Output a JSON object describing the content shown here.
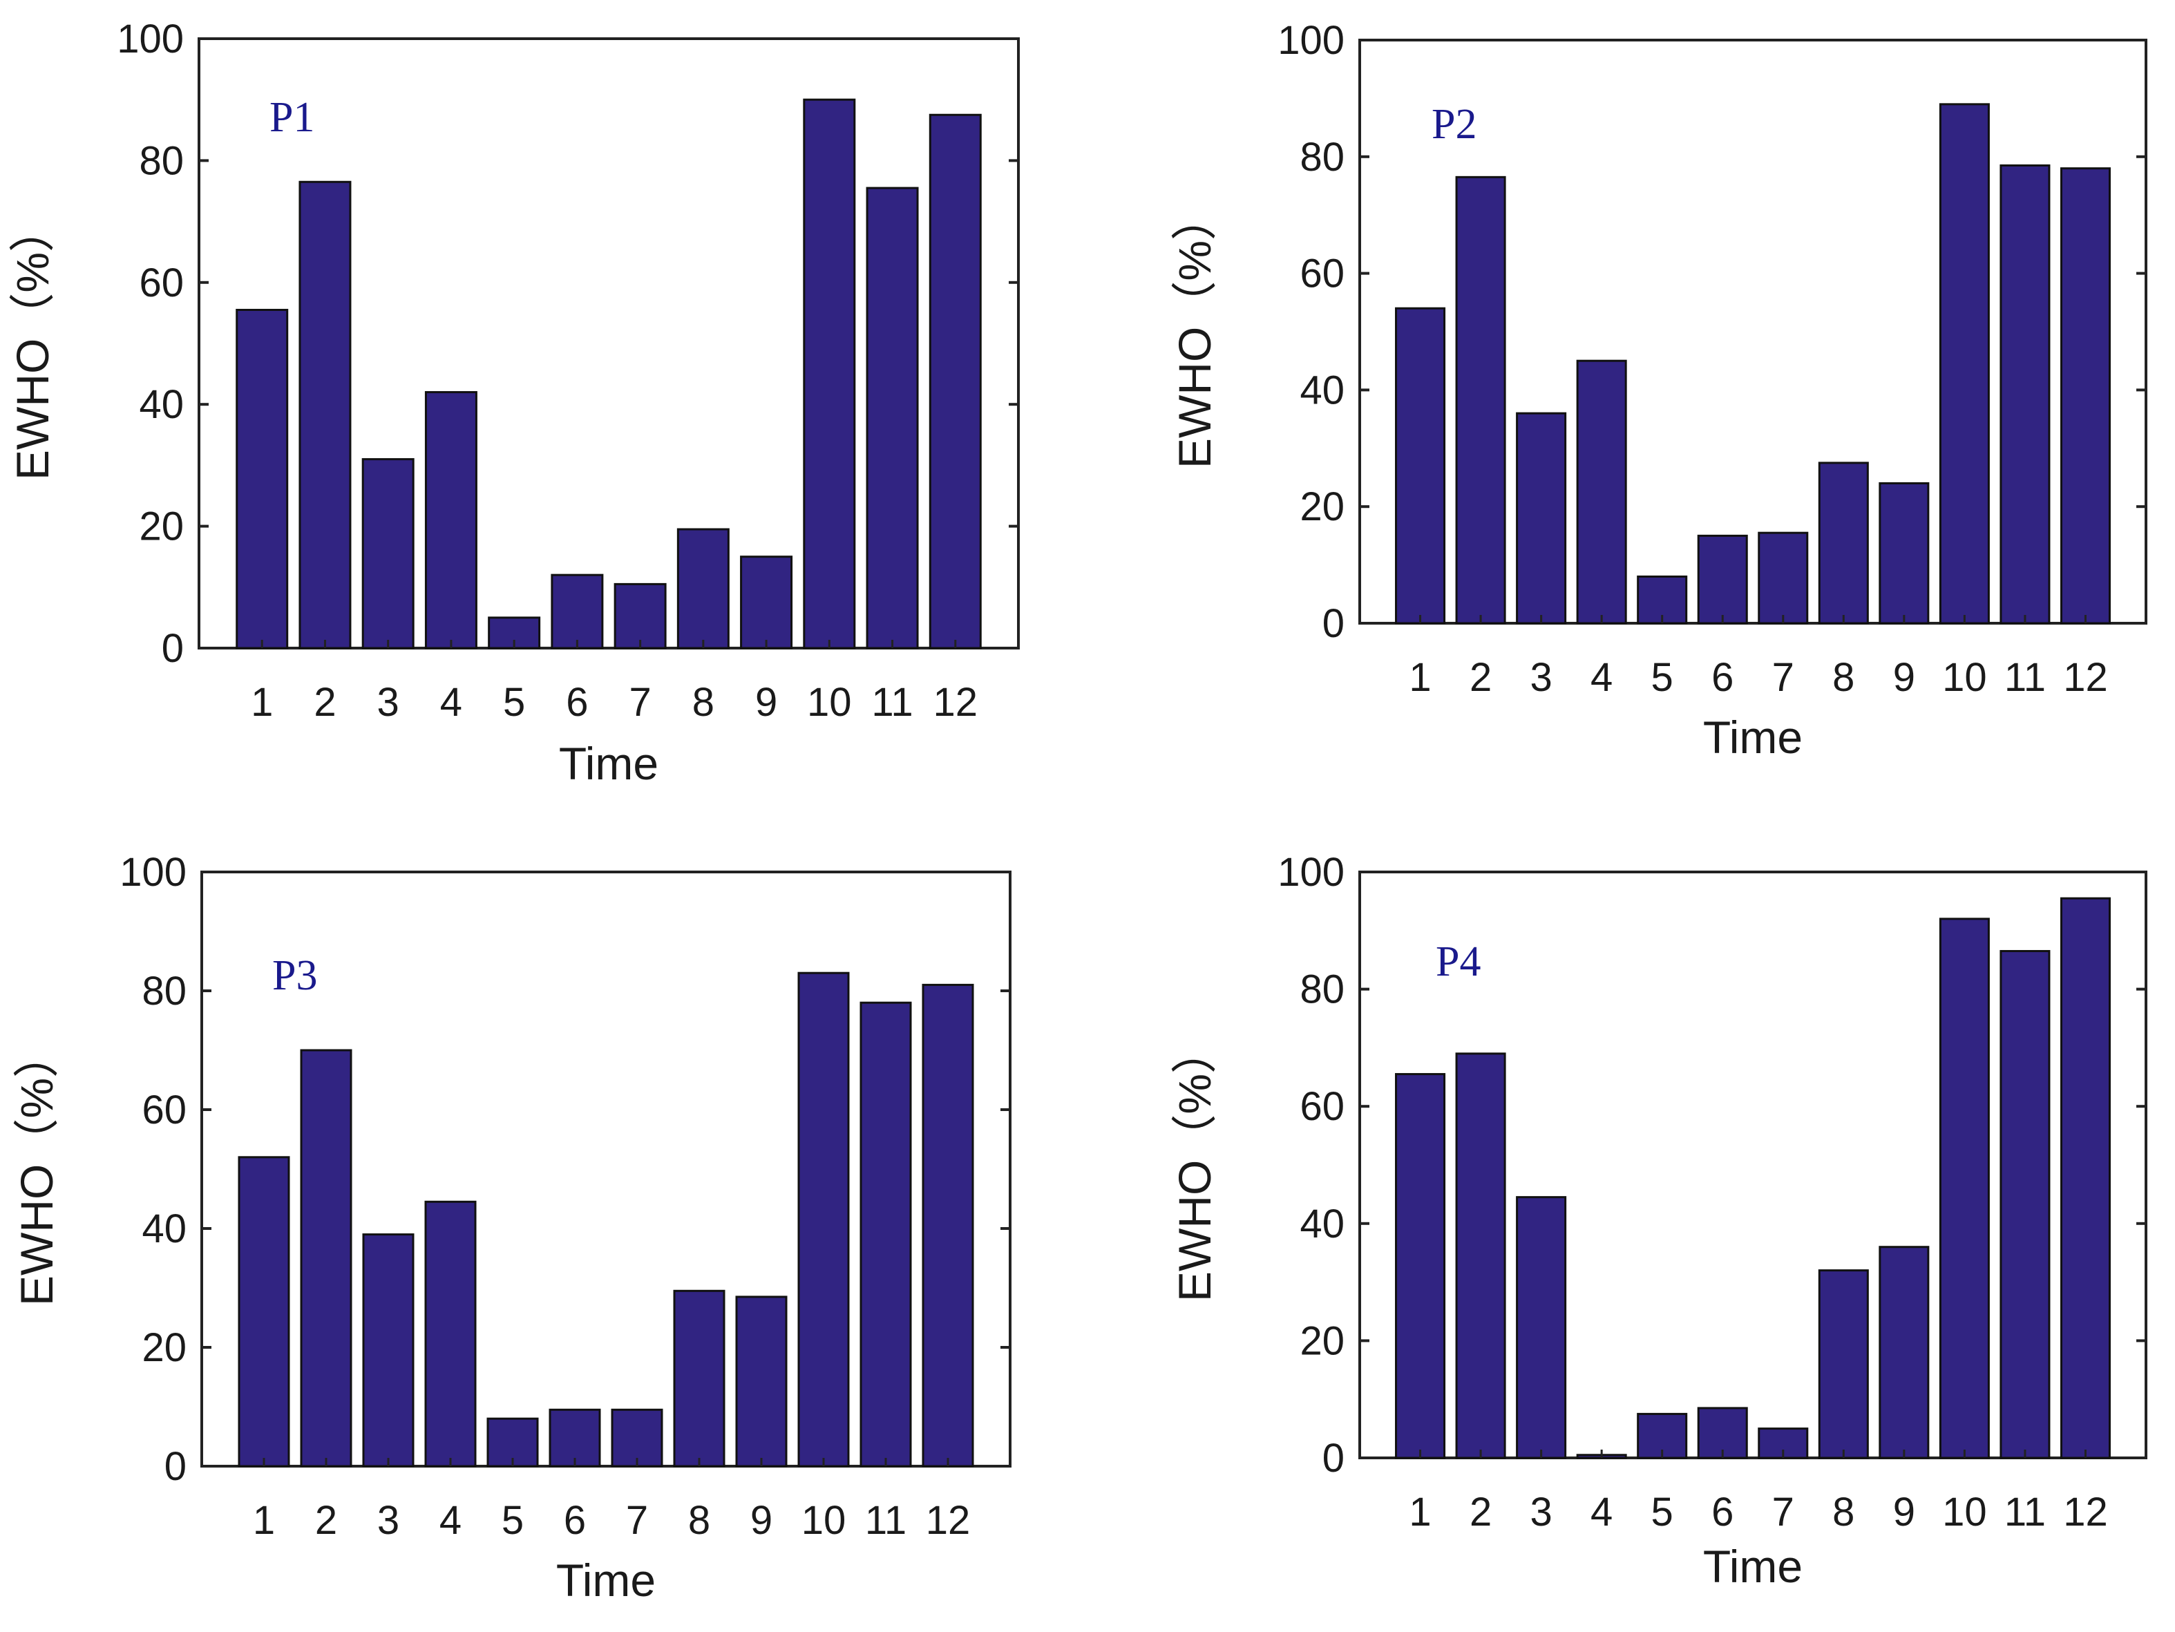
{
  "chart_data": [
    {
      "type": "bar",
      "panel_label": "P1",
      "xlabel": "Time",
      "ylabel": "EWHO（%）",
      "categories": [
        "1",
        "2",
        "3",
        "4",
        "5",
        "6",
        "7",
        "8",
        "9",
        "10",
        "11",
        "12"
      ],
      "values": [
        55.5,
        76.5,
        31.0,
        42.0,
        5.0,
        12.0,
        10.5,
        19.5,
        15.0,
        90.0,
        75.5,
        87.5
      ],
      "ylim": [
        0,
        100
      ],
      "yticks": [
        "0",
        "20",
        "40",
        "60",
        "80",
        "100"
      ],
      "bar_color": "#312482"
    },
    {
      "type": "bar",
      "panel_label": "P2",
      "xlabel": "Time",
      "ylabel": "EWHO（%）",
      "categories": [
        "1",
        "2",
        "3",
        "4",
        "5",
        "6",
        "7",
        "8",
        "9",
        "10",
        "11",
        "12"
      ],
      "values": [
        54.0,
        76.5,
        36.0,
        45.0,
        8.0,
        15.0,
        15.5,
        27.5,
        24.0,
        89.0,
        78.5,
        78.0
      ],
      "ylim": [
        0,
        100
      ],
      "yticks": [
        "0",
        "20",
        "40",
        "60",
        "80",
        "100"
      ],
      "bar_color": "#312482"
    },
    {
      "type": "bar",
      "panel_label": "P3",
      "xlabel": "Time",
      "ylabel": "EWHO（%）",
      "categories": [
        "1",
        "2",
        "3",
        "4",
        "5",
        "6",
        "7",
        "8",
        "9",
        "10",
        "11",
        "12"
      ],
      "values": [
        52.0,
        70.0,
        39.0,
        44.5,
        8.0,
        9.5,
        9.5,
        29.5,
        28.5,
        83.0,
        78.0,
        81.0
      ],
      "ylim": [
        0,
        100
      ],
      "yticks": [
        "0",
        "20",
        "40",
        "60",
        "80",
        "100"
      ],
      "bar_color": "#312482"
    },
    {
      "type": "bar",
      "panel_label": "P4",
      "xlabel": "Time",
      "ylabel": "EWHO（%）",
      "categories": [
        "1",
        "2",
        "3",
        "4",
        "5",
        "6",
        "7",
        "8",
        "9",
        "10",
        "11",
        "12"
      ],
      "values": [
        65.5,
        69.0,
        44.5,
        0.5,
        7.5,
        8.5,
        5.0,
        32.0,
        36.0,
        92.0,
        86.5,
        95.5
      ],
      "ylim": [
        0,
        100
      ],
      "yticks": [
        "0",
        "20",
        "40",
        "60",
        "80",
        "100"
      ],
      "bar_color": "#312482"
    }
  ]
}
